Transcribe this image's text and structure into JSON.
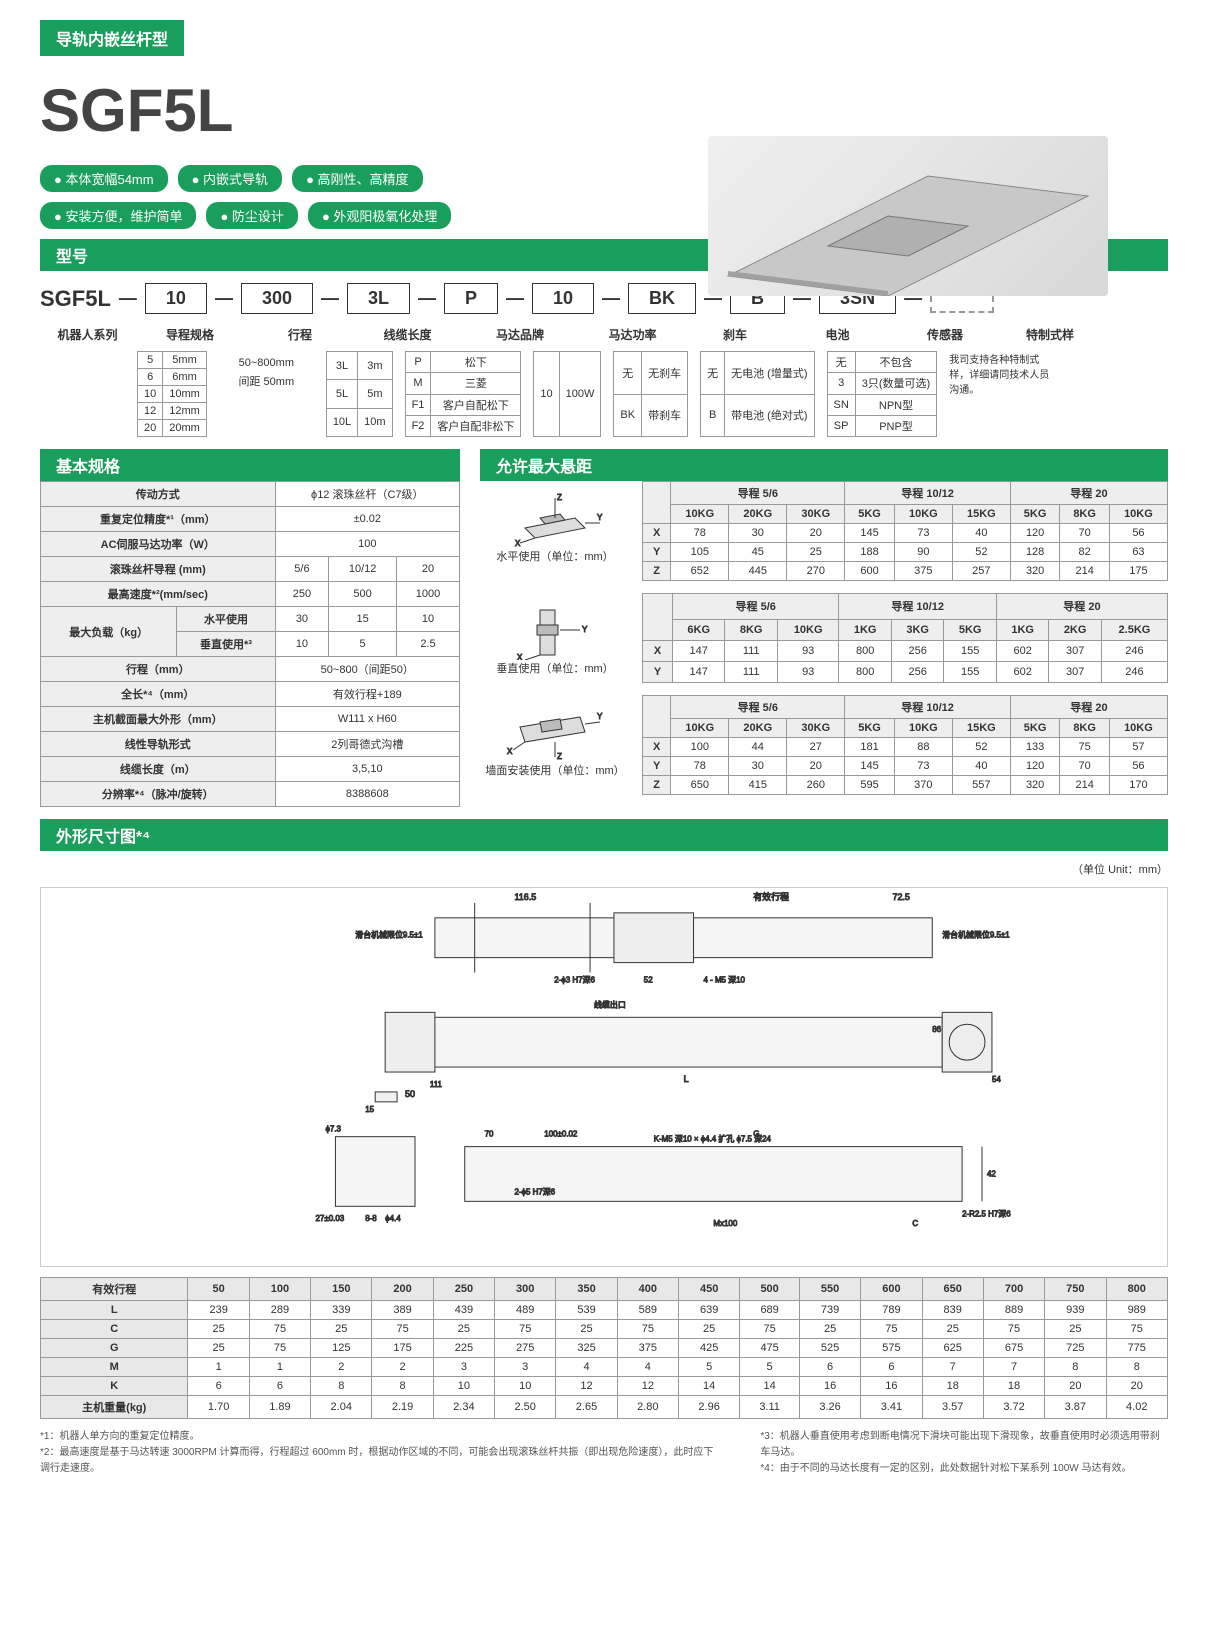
{
  "header_band": "导轨内嵌丝杆型",
  "product_name": "SGF5L",
  "tags_row1": [
    "本体宽幅54mm",
    "内嵌式导轨",
    "高刚性、高精度"
  ],
  "tags_row2": [
    "安装方便，维护简单",
    "防尘设计",
    "外观阳极氧化处理"
  ],
  "section_model": "型号",
  "model_prefix": "SGF5L",
  "model_parts": [
    "10",
    "300",
    "3L",
    "P",
    "10",
    "BK",
    "B",
    "3SN"
  ],
  "param_labels": [
    "机器人系列",
    "导程规格",
    "行程",
    "线缆长度",
    "马达品牌",
    "马达功率",
    "刹车",
    "电池",
    "传感器",
    "特制式样"
  ],
  "lead_table": [
    [
      "5",
      "5mm"
    ],
    [
      "6",
      "6mm"
    ],
    [
      "10",
      "10mm"
    ],
    [
      "12",
      "12mm"
    ],
    [
      "20",
      "20mm"
    ]
  ],
  "stroke_text1": "50~800mm",
  "stroke_text2": "间距 50mm",
  "cable_table": [
    [
      "3L",
      "3m"
    ],
    [
      "5L",
      "5m"
    ],
    [
      "10L",
      "10m"
    ]
  ],
  "brand_table": [
    [
      "P",
      "松下"
    ],
    [
      "M",
      "三菱"
    ],
    [
      "F1",
      "客户自配松下"
    ],
    [
      "F2",
      "客户自配非松下"
    ]
  ],
  "power_table": [
    [
      "10",
      "100W"
    ]
  ],
  "brake_table": [
    [
      "无",
      "无刹车"
    ],
    [
      "BK",
      "带刹车"
    ]
  ],
  "battery_table": [
    [
      "无",
      "无电池\n(增量式)"
    ],
    [
      "B",
      "带电池\n(绝对式)"
    ]
  ],
  "sensor_table": [
    [
      "无",
      "不包含"
    ],
    [
      "3",
      "3只(数量可选)"
    ],
    [
      "SN",
      "NPN型"
    ],
    [
      "SP",
      "PNP型"
    ]
  ],
  "custom_text": "我司支持各种特制式样，详细请同技术人员沟通。",
  "section_basic": "基本规格",
  "section_overhang": "允许最大悬距",
  "basic_specs": [
    [
      "传动方式",
      [
        "ϕ12 滚珠丝杆（C7级）"
      ]
    ],
    [
      "重复定位精度*¹（mm）",
      [
        "±0.02"
      ]
    ],
    [
      "AC伺服马达功率（W）",
      [
        "100"
      ]
    ],
    [
      "滚珠丝杆导程 (mm)",
      [
        "5/6",
        "10/12",
        "20"
      ]
    ],
    [
      "最高速度*²(mm/sec)",
      [
        "250",
        "500",
        "1000"
      ]
    ]
  ],
  "payload_label": "最大负载（kg）",
  "payload_h": "水平使用",
  "payload_v": "垂直使用*³",
  "payload_h_vals": [
    "30",
    "15",
    "10"
  ],
  "payload_v_vals": [
    "10",
    "5",
    "2.5"
  ],
  "basic_specs2": [
    [
      "行程（mm）",
      [
        "50~800（间距50）"
      ]
    ],
    [
      "全长*⁴（mm）",
      [
        "有效行程+189"
      ]
    ],
    [
      "主机截面最大外形（mm）",
      [
        "W111 x H60"
      ]
    ],
    [
      "线性导轨形式",
      [
        "2列哥德式沟槽"
      ]
    ],
    [
      "线缆长度（m）",
      [
        "3,5,10"
      ]
    ],
    [
      "分辨率*⁴（脉冲/旋转）",
      [
        "8388608"
      ]
    ]
  ],
  "oh_usage_h": "水平使用（单位：mm）",
  "oh_usage_v": "垂直使用（单位：mm）",
  "oh_usage_w": "墙面安装使用（单位：mm）",
  "oh_groups": [
    "导程 5/6",
    "导程 10/12",
    "导程 20"
  ],
  "oh_h_heads": [
    "10KG",
    "20KG",
    "30KG",
    "5KG",
    "10KG",
    "15KG",
    "5KG",
    "8KG",
    "10KG"
  ],
  "oh_h_rows": [
    [
      "X",
      "78",
      "30",
      "20",
      "145",
      "73",
      "40",
      "120",
      "70",
      "56"
    ],
    [
      "Y",
      "105",
      "45",
      "25",
      "188",
      "90",
      "52",
      "128",
      "82",
      "63"
    ],
    [
      "Z",
      "652",
      "445",
      "270",
      "600",
      "375",
      "257",
      "320",
      "214",
      "175"
    ]
  ],
  "oh_v_heads": [
    "6KG",
    "8KG",
    "10KG",
    "1KG",
    "3KG",
    "5KG",
    "1KG",
    "2KG",
    "2.5KG"
  ],
  "oh_v_rows": [
    [
      "X",
      "147",
      "111",
      "93",
      "800",
      "256",
      "155",
      "602",
      "307",
      "246"
    ],
    [
      "Y",
      "147",
      "111",
      "93",
      "800",
      "256",
      "155",
      "602",
      "307",
      "246"
    ]
  ],
  "oh_w_heads": [
    "10KG",
    "20KG",
    "30KG",
    "5KG",
    "10KG",
    "15KG",
    "5KG",
    "8KG",
    "10KG"
  ],
  "oh_w_rows": [
    [
      "X",
      "100",
      "44",
      "27",
      "181",
      "88",
      "52",
      "133",
      "75",
      "57"
    ],
    [
      "Y",
      "78",
      "30",
      "20",
      "145",
      "73",
      "40",
      "120",
      "70",
      "56"
    ],
    [
      "Z",
      "650",
      "415",
      "260",
      "595",
      "370",
      "557",
      "320",
      "214",
      "170"
    ]
  ],
  "section_dim": "外形尺寸图*⁴",
  "unit_note": "（单位 Unit：mm）",
  "dim_heads": [
    "有效行程",
    "50",
    "100",
    "150",
    "200",
    "250",
    "300",
    "350",
    "400",
    "450",
    "500",
    "550",
    "600",
    "650",
    "700",
    "750",
    "800"
  ],
  "dim_rows": [
    [
      "L",
      "239",
      "289",
      "339",
      "389",
      "439",
      "489",
      "539",
      "589",
      "639",
      "689",
      "739",
      "789",
      "839",
      "889",
      "939",
      "989"
    ],
    [
      "C",
      "25",
      "75",
      "25",
      "75",
      "25",
      "75",
      "25",
      "75",
      "25",
      "75",
      "25",
      "75",
      "25",
      "75",
      "25",
      "75"
    ],
    [
      "G",
      "25",
      "75",
      "125",
      "175",
      "225",
      "275",
      "325",
      "375",
      "425",
      "475",
      "525",
      "575",
      "625",
      "675",
      "725",
      "775"
    ],
    [
      "M",
      "1",
      "1",
      "2",
      "2",
      "3",
      "3",
      "4",
      "4",
      "5",
      "5",
      "6",
      "6",
      "7",
      "7",
      "8",
      "8"
    ],
    [
      "K",
      "6",
      "6",
      "8",
      "8",
      "10",
      "10",
      "12",
      "12",
      "14",
      "14",
      "16",
      "16",
      "18",
      "18",
      "20",
      "20"
    ],
    [
      "主机重量(kg)",
      "1.70",
      "1.89",
      "2.04",
      "2.19",
      "2.34",
      "2.50",
      "2.65",
      "2.80",
      "2.96",
      "3.11",
      "3.26",
      "3.41",
      "3.57",
      "3.72",
      "3.87",
      "4.02"
    ]
  ],
  "notes_left": [
    "*1：机器人单方向的重复定位精度。",
    "*2：最高速度是基于马达转速 3000RPM 计算而得，行程超过 600mm 时，根据动作区域的不同，可能会出现滚珠丝杆共振（即出现危险速度），此时应下调行走速度。"
  ],
  "notes_right": [
    "*3：机器人垂直使用考虑到断电情况下滑块可能出现下滑现象，故垂直使用时必须选用带刹车马达。",
    "*4：由于不同的马达长度有一定的区别，此处数据针对松下某系列 100W 马达有效。"
  ],
  "colors": {
    "brand": "#1a9e5c",
    "border": "#999",
    "hdr_bg": "#eee"
  }
}
